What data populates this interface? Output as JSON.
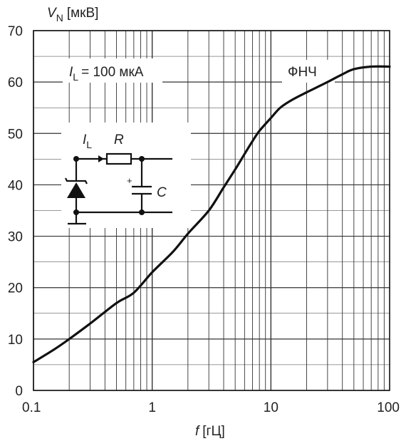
{
  "chart_data": {
    "type": "line",
    "ylabel_symbol": "V",
    "ylabel_sub": "N",
    "ylabel_unit": "[мкВ]",
    "xlabel_symbol": "f",
    "xlabel_unit": "[гЦ]",
    "x_scale": "log",
    "xlim": [
      0.1,
      100
    ],
    "ylim": [
      0,
      70
    ],
    "x_ticks": [
      "0.1",
      "1",
      "10",
      "100"
    ],
    "y_ticks": [
      "0",
      "10",
      "20",
      "30",
      "40",
      "50",
      "60",
      "70"
    ],
    "grid": true,
    "annotations": {
      "current_symbol": "I",
      "current_sub": "L",
      "current_value": "= 100 мкА",
      "filter": "ФНЧ"
    },
    "schematic_labels": {
      "current_symbol": "I",
      "current_sub": "L",
      "resistor": "R",
      "capacitor": "C",
      "plus": "+"
    },
    "series": [
      {
        "x": [
          0.1,
          0.15,
          0.2,
          0.3,
          0.5,
          0.7,
          1,
          1.5,
          2,
          3,
          4,
          5,
          6,
          7,
          8,
          10,
          12,
          15,
          20,
          30,
          40,
          50,
          70,
          100
        ],
        "y": [
          5.5,
          8,
          10,
          13,
          17,
          19,
          23,
          27,
          30.5,
          35,
          39.5,
          43,
          46,
          48.5,
          50.5,
          53,
          55,
          56.5,
          58,
          60,
          61.5,
          62.5,
          63,
          63
        ]
      }
    ]
  }
}
